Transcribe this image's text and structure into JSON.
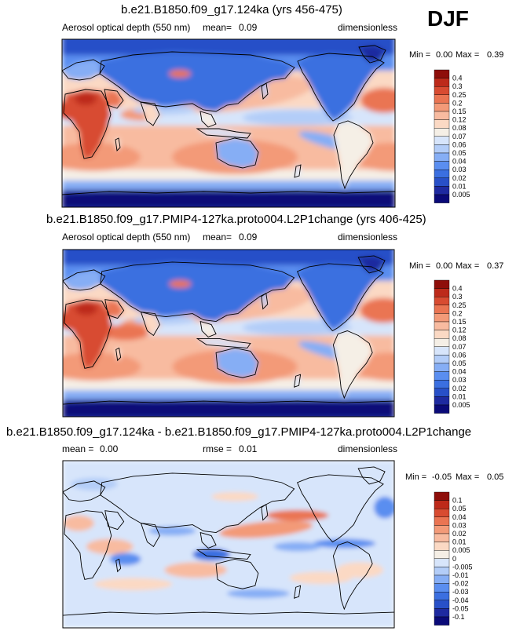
{
  "season": "DJF",
  "colors": {
    "abs_scale": [
      "#0a0a78",
      "#1e2aa0",
      "#2850c8",
      "#3b6fe0",
      "#5a8ef0",
      "#86aef5",
      "#b3cdf8",
      "#d7e5fb",
      "#f5efe6",
      "#fbd9c4",
      "#f8bba0",
      "#f39a78",
      "#ea7452",
      "#d84b31",
      "#bd2a1a",
      "#8e0e0a"
    ],
    "diff_scale": [
      "#0a0a78",
      "#1e2aa0",
      "#2850c8",
      "#3b6fe0",
      "#5a8ef0",
      "#86aef5",
      "#b3cdf8",
      "#d7e5fb",
      "#f5efe6",
      "#fbd9c4",
      "#f8bba0",
      "#f39a78",
      "#ea7452",
      "#d84b31",
      "#bd2a1a",
      "#8e0e0a"
    ]
  },
  "panels": [
    {
      "title": "b.e21.B1850.f09_g17.124ka (yrs 456-475)",
      "variable": "Aerosol optical depth (550 nm)",
      "mean_label": "mean=",
      "mean_value": "0.09",
      "units": "dimensionless",
      "min_label": "Min =",
      "min_value": "0.00",
      "max_label": "Max =",
      "max_value": "0.39",
      "colorbar_levels": [
        "0.4",
        "0.3",
        "0.25",
        "0.2",
        "0.15",
        "0.12",
        "0.08",
        "0.07",
        "0.06",
        "0.05",
        "0.04",
        "0.03",
        "0.02",
        "0.01",
        "0.005"
      ]
    },
    {
      "title": "b.e21.B1850.f09_g17.PMIP4-127ka.proto004.L2P1change (yrs 406-425)",
      "variable": "Aerosol optical depth (550 nm)",
      "mean_label": "mean=",
      "mean_value": "0.09",
      "units": "dimensionless",
      "min_label": "Min =",
      "min_value": "0.00",
      "max_label": "Max =",
      "max_value": "0.37",
      "colorbar_levels": [
        "0.4",
        "0.3",
        "0.25",
        "0.2",
        "0.15",
        "0.12",
        "0.08",
        "0.07",
        "0.06",
        "0.05",
        "0.04",
        "0.03",
        "0.02",
        "0.01",
        "0.005"
      ]
    },
    {
      "title": "b.e21.B1850.f09_g17.124ka - b.e21.B1850.f09_g17.PMIP4-127ka.proto004.L2P1change",
      "mean_label": "mean =",
      "mean_value": "0.00",
      "rmse_label": "rmse =",
      "rmse_value": "0.01",
      "units": "dimensionless",
      "min_label": "Min =",
      "min_value": "-0.05",
      "max_label": "Max =",
      "max_value": "0.05",
      "colorbar_levels": [
        "0.1",
        "0.05",
        "0.04",
        "0.03",
        "0.02",
        "0.01",
        "0.005",
        "0",
        "-0.005",
        "-0.01",
        "-0.02",
        "-0.03",
        "-0.04",
        "-0.05",
        "-0.1"
      ]
    }
  ],
  "chart_data": [
    {
      "type": "heatmap",
      "title": "b.e21.B1850.f09_g17.124ka (yrs 456-475)",
      "variable": "Aerosol optical depth (550 nm)",
      "units": "dimensionless",
      "mean": 0.09,
      "min": 0.0,
      "max": 0.39,
      "colorbar_levels": [
        0.005,
        0.01,
        0.02,
        0.03,
        0.04,
        0.05,
        0.06,
        0.07,
        0.08,
        0.12,
        0.15,
        0.2,
        0.25,
        0.3,
        0.4
      ],
      "map": "global cylindrical equidistant, coastlines"
    },
    {
      "type": "heatmap",
      "title": "b.e21.B1850.f09_g17.PMIP4-127ka.proto004.L2P1change (yrs 406-425)",
      "variable": "Aerosol optical depth (550 nm)",
      "units": "dimensionless",
      "mean": 0.09,
      "min": 0.0,
      "max": 0.37,
      "colorbar_levels": [
        0.005,
        0.01,
        0.02,
        0.03,
        0.04,
        0.05,
        0.06,
        0.07,
        0.08,
        0.12,
        0.15,
        0.2,
        0.25,
        0.3,
        0.4
      ],
      "map": "global cylindrical equidistant, coastlines"
    },
    {
      "type": "heatmap",
      "title": "b.e21.B1850.f09_g17.124ka - b.e21.B1850.f09_g17.PMIP4-127ka.proto004.L2P1change",
      "units": "dimensionless",
      "mean": 0.0,
      "rmse": 0.01,
      "min": -0.05,
      "max": 0.05,
      "colorbar_levels": [
        -0.1,
        -0.05,
        -0.04,
        -0.03,
        -0.02,
        -0.01,
        -0.005,
        0,
        0.005,
        0.01,
        0.02,
        0.03,
        0.04,
        0.05,
        0.1
      ],
      "map": "global cylindrical equidistant, coastlines"
    }
  ]
}
